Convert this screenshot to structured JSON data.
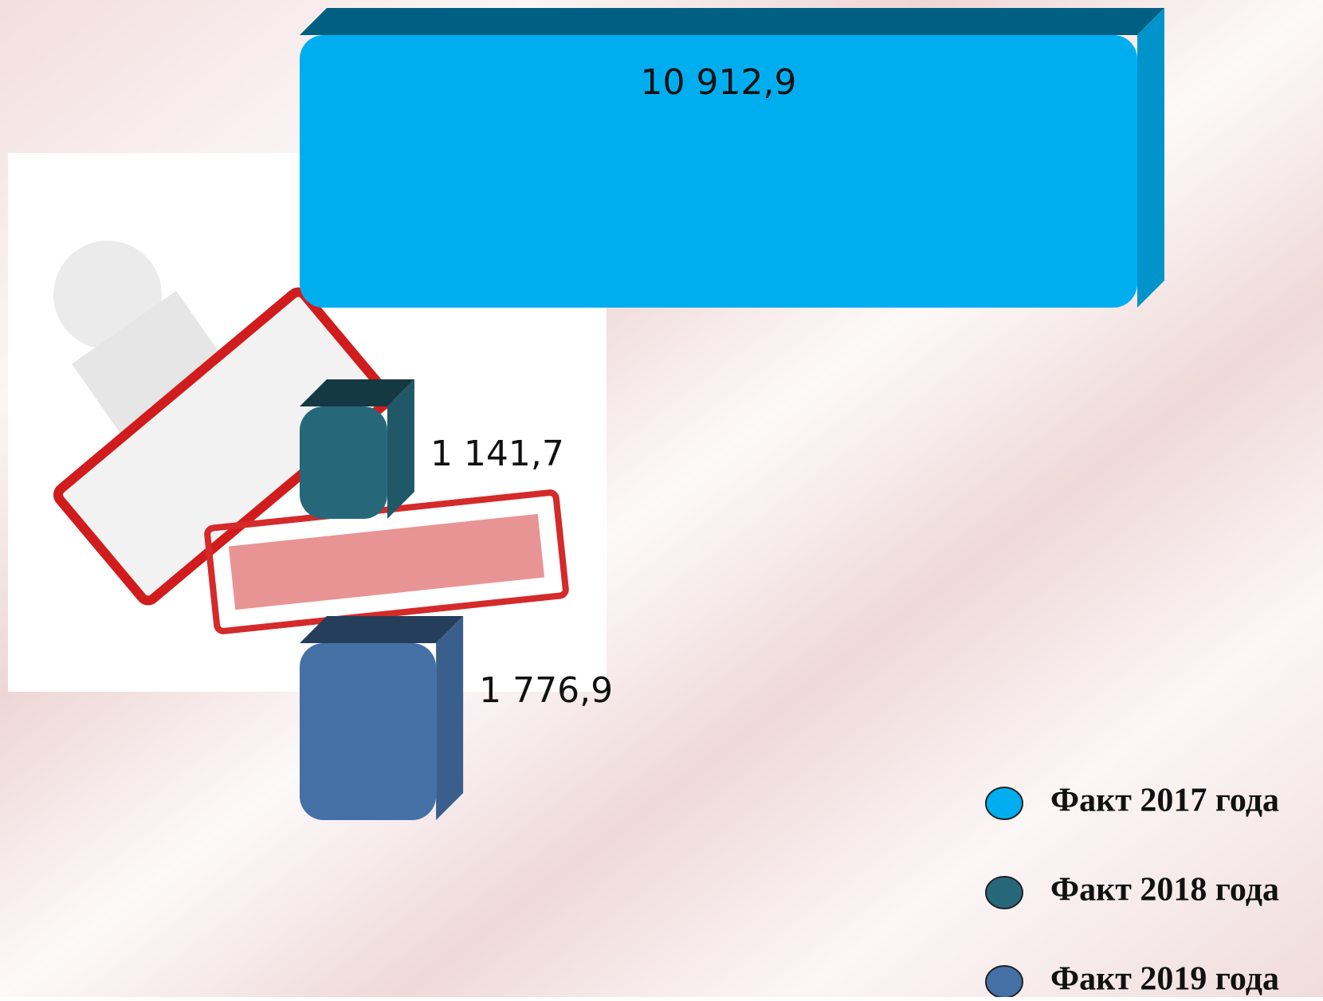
{
  "chart_data": {
    "type": "bar",
    "orientation": "horizontal",
    "series": [
      {
        "name": "Факт 2017 года",
        "color": "#00aeef",
        "values": [
          10912.9
        ],
        "value_labels": [
          "10 912,9"
        ]
      },
      {
        "name": "Факт 2018 года",
        "color": "#26687a",
        "values": [
          1141.7
        ],
        "value_labels": [
          "1 141,7"
        ]
      },
      {
        "name": "Факт 2019 года",
        "color": "#4470a6",
        "values": [
          1776.9
        ],
        "value_labels": [
          "1 776,9"
        ]
      }
    ],
    "legend": "bottom-right"
  }
}
